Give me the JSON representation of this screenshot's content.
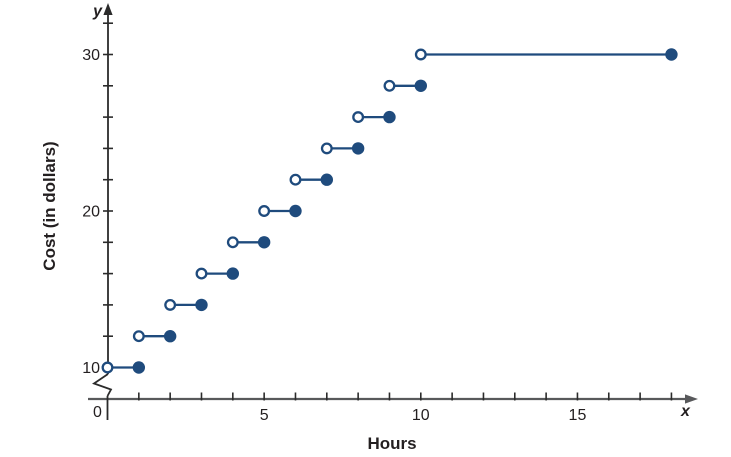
{
  "chart_data": {
    "type": "step",
    "title": "",
    "xlabel": "Hours",
    "ylabel": "Cost (in dollars)",
    "x_axis_letter": "x",
    "y_axis_letter": "y",
    "origin_label": "0",
    "xlim": [
      0,
      18.7
    ],
    "ylim_shown": [
      10,
      32
    ],
    "y_axis_break_between": [
      0,
      10
    ],
    "grid": false,
    "legend": "none",
    "endpoint_style": {
      "left": "open",
      "right": "closed"
    },
    "steps": [
      {
        "x_start": 0,
        "x_end": 1,
        "y": 10,
        "left": "open",
        "right": "closed"
      },
      {
        "x_start": 1,
        "x_end": 2,
        "y": 12,
        "left": "open",
        "right": "closed"
      },
      {
        "x_start": 2,
        "x_end": 3,
        "y": 14,
        "left": "open",
        "right": "closed"
      },
      {
        "x_start": 3,
        "x_end": 4,
        "y": 16,
        "left": "open",
        "right": "closed"
      },
      {
        "x_start": 4,
        "x_end": 5,
        "y": 18,
        "left": "open",
        "right": "closed"
      },
      {
        "x_start": 5,
        "x_end": 6,
        "y": 20,
        "left": "open",
        "right": "closed"
      },
      {
        "x_start": 6,
        "x_end": 7,
        "y": 22,
        "left": "open",
        "right": "closed"
      },
      {
        "x_start": 7,
        "x_end": 8,
        "y": 24,
        "left": "open",
        "right": "closed"
      },
      {
        "x_start": 8,
        "x_end": 9,
        "y": 26,
        "left": "open",
        "right": "closed"
      },
      {
        "x_start": 9,
        "x_end": 10,
        "y": 28,
        "left": "open",
        "right": "closed"
      },
      {
        "x_start": 10,
        "x_end": 18,
        "y": 30,
        "left": "open",
        "right": "closed"
      }
    ],
    "x_ticks_minor": [
      1,
      2,
      3,
      4,
      5,
      6,
      7,
      8,
      9,
      10,
      11,
      12,
      13,
      14,
      15,
      16,
      17,
      18
    ],
    "x_ticks_labeled": [
      {
        "value": 0,
        "label": "0"
      },
      {
        "value": 5,
        "label": "5"
      },
      {
        "value": 10,
        "label": "10"
      },
      {
        "value": 15,
        "label": "15"
      }
    ],
    "y_ticks_minor": [
      12,
      14,
      16,
      18,
      20,
      22,
      24,
      26,
      28,
      30,
      32
    ],
    "y_ticks_labeled": [
      {
        "value": 10,
        "label": "10"
      },
      {
        "value": 20,
        "label": "20"
      },
      {
        "value": 30,
        "label": "30"
      }
    ],
    "colors": {
      "series": "#1f4b7d",
      "x_axis": "#58595b",
      "y_axis": "#2b2b2b",
      "tick": "#2b2b2b",
      "text": "#231f20",
      "background": "#ffffff"
    }
  }
}
